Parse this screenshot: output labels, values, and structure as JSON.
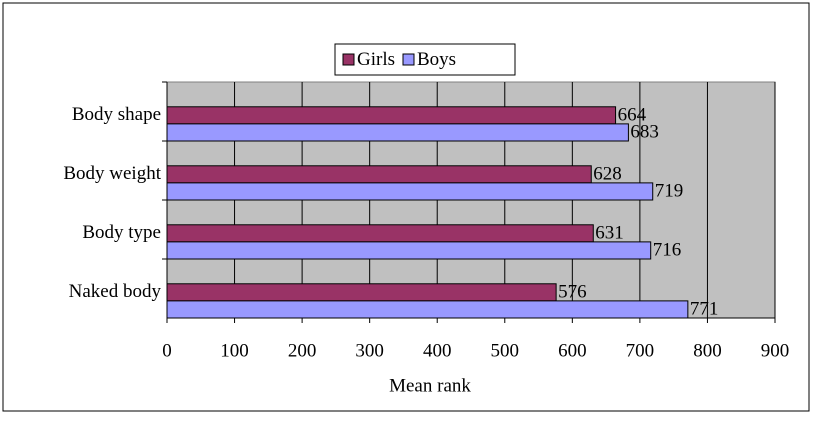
{
  "chart_data": {
    "type": "bar",
    "orientation": "horizontal",
    "x_label": "Mean rank",
    "categories": [
      "Body shape",
      "Body weight",
      "Body type",
      "Naked body"
    ],
    "series": [
      {
        "name": "Girls",
        "color": "#993366",
        "values": [
          664,
          628,
          631,
          576
        ]
      },
      {
        "name": "Boys",
        "color": "#9999ff",
        "values": [
          683,
          719,
          716,
          771
        ]
      }
    ],
    "xlim": [
      0,
      900
    ],
    "xticks": [
      0,
      100,
      200,
      300,
      400,
      500,
      600,
      700,
      800,
      900
    ],
    "grid": true,
    "legend": "top",
    "plot_background": "#c0c0c0"
  }
}
